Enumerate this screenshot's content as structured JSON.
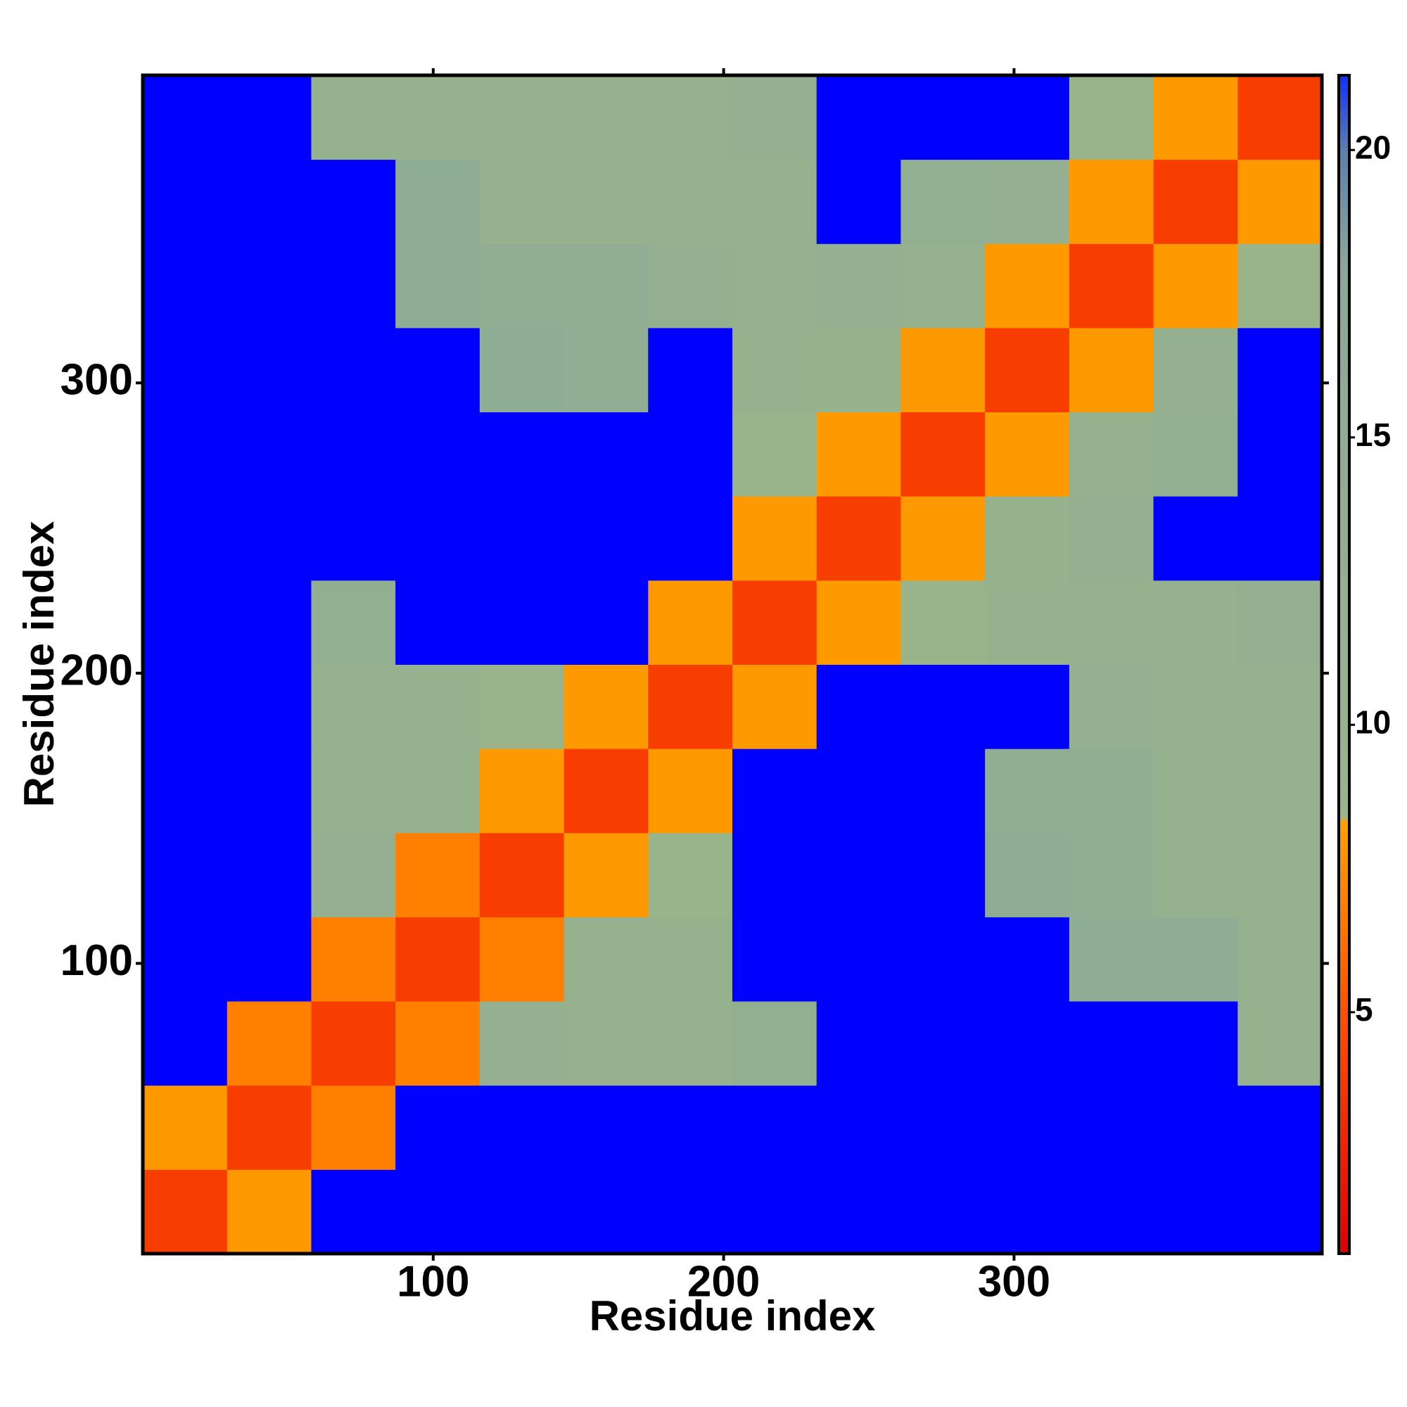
{
  "chart_data": {
    "type": "heatmap",
    "x_label": "Residue index",
    "y_label": "Residue index",
    "x_bins": [
      0,
      29,
      58,
      87,
      116,
      145,
      174,
      203,
      232,
      261,
      290,
      319,
      348,
      377,
      406
    ],
    "y_bins": [
      0,
      29,
      58,
      87,
      116,
      145,
      174,
      203,
      232,
      261,
      290,
      319,
      348,
      377,
      406
    ],
    "xlim": [
      0,
      406
    ],
    "ylim": [
      0,
      406
    ],
    "xticks": [
      100,
      200,
      300
    ],
    "yticks": [
      100,
      200,
      300
    ],
    "z": [
      [
        4,
        8,
        25,
        25,
        25,
        25,
        25,
        25,
        25,
        25,
        25,
        25,
        25,
        25
      ],
      [
        8,
        4,
        7,
        25,
        25,
        25,
        25,
        25,
        25,
        25,
        25,
        25,
        25,
        25
      ],
      [
        25,
        7,
        4,
        7,
        12,
        11,
        11,
        13,
        25,
        25,
        25,
        25,
        25,
        11
      ],
      [
        25,
        25,
        7,
        4,
        7,
        11,
        11,
        25,
        25,
        25,
        25,
        15,
        15,
        11
      ],
      [
        25,
        25,
        12,
        7,
        4,
        8,
        9,
        25,
        25,
        25,
        15,
        14,
        11,
        11
      ],
      [
        25,
        25,
        11,
        11,
        8,
        4,
        8,
        25,
        25,
        25,
        14,
        14,
        11,
        11
      ],
      [
        25,
        25,
        11,
        11,
        9,
        8,
        4,
        8,
        25,
        25,
        25,
        12,
        11,
        11
      ],
      [
        25,
        25,
        13,
        25,
        25,
        25,
        8,
        4,
        8,
        9,
        11,
        11,
        11,
        12
      ],
      [
        25,
        25,
        25,
        25,
        25,
        25,
        25,
        8,
        4,
        8,
        10,
        12,
        25,
        25
      ],
      [
        25,
        25,
        25,
        25,
        25,
        25,
        25,
        9,
        8,
        4,
        8,
        11,
        13,
        25
      ],
      [
        25,
        25,
        25,
        25,
        15,
        14,
        25,
        11,
        10,
        8,
        4,
        8,
        12,
        25
      ],
      [
        25,
        25,
        25,
        15,
        14,
        14,
        12,
        11,
        12,
        11,
        8,
        4,
        8,
        9
      ],
      [
        25,
        25,
        25,
        15,
        11,
        11,
        11,
        11,
        25,
        13,
        12,
        8,
        4,
        8
      ],
      [
        25,
        25,
        11,
        11,
        11,
        11,
        11,
        12,
        25,
        25,
        25,
        9,
        8,
        4
      ]
    ],
    "zlim": [
      0.8,
      21.3
    ],
    "colorbar_ticks": [
      5,
      10,
      15,
      20
    ],
    "colorscale": [
      [
        0.8,
        "#e00000"
      ],
      [
        5,
        "#ff5000"
      ],
      [
        8.3,
        "#ffa000"
      ],
      [
        8.4,
        "#9ab58a"
      ],
      [
        18,
        "#8aa89a"
      ],
      [
        20,
        "#5a7fb0"
      ],
      [
        21.3,
        "#1030ff"
      ]
    ],
    "over_color": "#0000ff"
  }
}
